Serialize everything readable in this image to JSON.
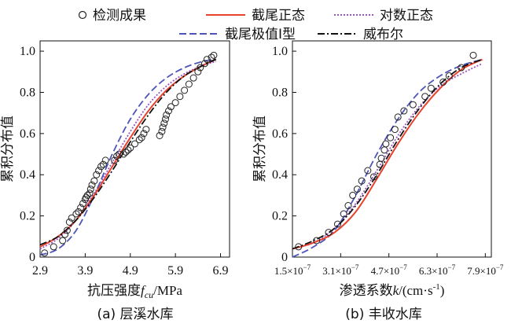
{
  "legend": [
    {
      "label": "检测成果",
      "kind": "marker",
      "color": "#222222"
    },
    {
      "label": "截尾正态",
      "kind": "solid",
      "color": "#e8412c"
    },
    {
      "label": "对数正态",
      "kind": "dotted",
      "color": "#9a55c4"
    },
    {
      "label": "截尾极值Ⅰ型",
      "kind": "dashed",
      "color": "#4f55b8"
    },
    {
      "label": "威布尔",
      "kind": "dashdot",
      "color": "#111111"
    }
  ],
  "chart_data": [
    {
      "type": "line",
      "caption": "(a) 层溪水库",
      "xlabel_text": "抗压强度",
      "xlabel_var": "f",
      "xlabel_sub": "cu",
      "xlabel_unit": "/MPa",
      "ylabel": "累积分布值",
      "xlim": [
        2.9,
        7.1
      ],
      "ylim": [
        0,
        1.05
      ],
      "xticks": [
        2.9,
        3.9,
        4.9,
        5.9,
        6.9
      ],
      "xtick_labels": [
        "2.9",
        "3.9",
        "4.9",
        "5.9",
        "6.9"
      ],
      "yticks": [
        0,
        0.2,
        0.4,
        0.6,
        0.8,
        1.0
      ],
      "ytick_labels": [
        "0",
        "0.2",
        "0.4",
        "0.6",
        "0.8",
        "1.0"
      ],
      "observed": {
        "name": "检测成果",
        "x": [
          3.0,
          3.2,
          3.4,
          3.45,
          3.5,
          3.55,
          3.6,
          3.7,
          3.75,
          3.8,
          3.85,
          3.9,
          3.92,
          3.95,
          4.0,
          4.02,
          4.05,
          4.1,
          4.15,
          4.2,
          4.25,
          4.3,
          4.35,
          4.55,
          4.6,
          4.65,
          4.75,
          4.8,
          4.85,
          4.9,
          5.0,
          5.1,
          5.15,
          5.2,
          5.25,
          5.55,
          5.6,
          5.62,
          5.65,
          5.68,
          5.7,
          5.75,
          5.8,
          5.9,
          6.0,
          6.1,
          6.2,
          6.3,
          6.4,
          6.45,
          6.55,
          6.6,
          6.7,
          6.75
        ],
        "y": [
          0.02,
          0.05,
          0.08,
          0.11,
          0.13,
          0.17,
          0.19,
          0.21,
          0.22,
          0.24,
          0.26,
          0.28,
          0.29,
          0.3,
          0.31,
          0.33,
          0.35,
          0.37,
          0.4,
          0.42,
          0.44,
          0.45,
          0.47,
          0.47,
          0.49,
          0.5,
          0.5,
          0.51,
          0.52,
          0.53,
          0.55,
          0.57,
          0.58,
          0.6,
          0.62,
          0.59,
          0.61,
          0.63,
          0.65,
          0.67,
          0.69,
          0.71,
          0.73,
          0.75,
          0.78,
          0.81,
          0.84,
          0.87,
          0.9,
          0.92,
          0.94,
          0.96,
          0.97,
          0.98
        ]
      },
      "series": [
        {
          "name": "截尾正态",
          "style": "solid",
          "x": [
            2.9,
            3.3,
            3.7,
            4.1,
            4.5,
            4.9,
            5.3,
            5.7,
            6.1,
            6.5,
            6.8
          ],
          "y": [
            0.05,
            0.1,
            0.18,
            0.3,
            0.44,
            0.58,
            0.71,
            0.81,
            0.88,
            0.93,
            0.96
          ]
        },
        {
          "name": "对数正态",
          "style": "dotted",
          "x": [
            2.9,
            3.3,
            3.7,
            4.1,
            4.5,
            4.9,
            5.3,
            5.7,
            6.1,
            6.5,
            6.8
          ],
          "y": [
            0.04,
            0.09,
            0.18,
            0.31,
            0.46,
            0.61,
            0.74,
            0.83,
            0.89,
            0.93,
            0.95
          ]
        },
        {
          "name": "截尾极值Ⅰ型",
          "style": "dashed",
          "x": [
            2.9,
            3.3,
            3.7,
            4.1,
            4.5,
            4.9,
            5.3,
            5.7,
            6.1,
            6.5,
            6.8
          ],
          "y": [
            0.01,
            0.04,
            0.13,
            0.3,
            0.5,
            0.67,
            0.79,
            0.87,
            0.92,
            0.95,
            0.96
          ]
        },
        {
          "name": "威布尔",
          "style": "dashdot",
          "x": [
            2.9,
            3.3,
            3.7,
            4.1,
            4.5,
            4.9,
            5.3,
            5.7,
            6.1,
            6.5,
            6.8
          ],
          "y": [
            0.06,
            0.1,
            0.18,
            0.29,
            0.42,
            0.56,
            0.69,
            0.8,
            0.88,
            0.93,
            0.96
          ]
        }
      ]
    },
    {
      "type": "line",
      "caption": "(b) 丰收水库",
      "xlabel_text": "渗透系数",
      "xlabel_var": "k",
      "xlabel_unit_pre": "/(cm·s",
      "xlabel_unit_sup": "-1",
      "xlabel_unit_post": ")",
      "ylabel": "累积分布值",
      "xlim": [
        1.5,
        8.1
      ],
      "ylim": [
        0,
        1.05
      ],
      "xticks": [
        1.5,
        3.1,
        4.7,
        6.3,
        7.9
      ],
      "xtick_labels": [
        "1.5×10",
        "3.1×10",
        "4.7×10",
        "6.3×10",
        "7.9×10"
      ],
      "xtick_exponent": "−7",
      "yticks": [
        0,
        0.2,
        0.4,
        0.6,
        0.8,
        1.0
      ],
      "ytick_labels": [
        "0",
        "0.2",
        "0.4",
        "0.6",
        "0.8",
        "1.0"
      ],
      "observed": {
        "name": "检测成果",
        "x": [
          1.7,
          2.3,
          2.7,
          3.0,
          3.2,
          3.35,
          3.5,
          3.65,
          3.8,
          4.0,
          4.2,
          4.4,
          4.45,
          4.55,
          4.6,
          4.75,
          4.9,
          5.0,
          5.2,
          5.5,
          5.9,
          6.1,
          6.5,
          6.7,
          7.1,
          7.5
        ],
        "y": [
          0.05,
          0.08,
          0.12,
          0.16,
          0.21,
          0.25,
          0.3,
          0.33,
          0.37,
          0.42,
          0.39,
          0.45,
          0.48,
          0.52,
          0.55,
          0.58,
          0.62,
          0.68,
          0.71,
          0.74,
          0.78,
          0.82,
          0.85,
          0.88,
          0.92,
          0.98
        ]
      },
      "series": [
        {
          "name": "截尾正态",
          "style": "solid",
          "x": [
            1.5,
            2.2,
            2.9,
            3.6,
            4.3,
            5.0,
            5.7,
            6.4,
            7.1,
            7.8
          ],
          "y": [
            0.04,
            0.07,
            0.12,
            0.22,
            0.38,
            0.55,
            0.7,
            0.82,
            0.91,
            0.96
          ]
        },
        {
          "name": "对数正态",
          "style": "dotted",
          "x": [
            1.5,
            2.2,
            2.9,
            3.6,
            4.3,
            5.0,
            5.7,
            6.4,
            7.1,
            7.8
          ],
          "y": [
            0.04,
            0.07,
            0.14,
            0.26,
            0.42,
            0.59,
            0.73,
            0.83,
            0.89,
            0.94
          ]
        },
        {
          "name": "截尾极值Ⅰ型",
          "style": "dashed",
          "x": [
            1.5,
            2.2,
            2.9,
            3.6,
            4.3,
            5.0,
            5.7,
            6.4,
            7.1,
            7.8
          ],
          "y": [
            0.0,
            0.05,
            0.13,
            0.3,
            0.5,
            0.67,
            0.8,
            0.88,
            0.93,
            0.96
          ]
        },
        {
          "name": "威布尔",
          "style": "dashdot",
          "x": [
            1.5,
            2.2,
            2.9,
            3.6,
            4.3,
            5.0,
            5.7,
            6.4,
            7.1,
            7.8
          ],
          "y": [
            0.04,
            0.08,
            0.14,
            0.25,
            0.4,
            0.57,
            0.72,
            0.84,
            0.92,
            0.96
          ]
        }
      ]
    }
  ]
}
